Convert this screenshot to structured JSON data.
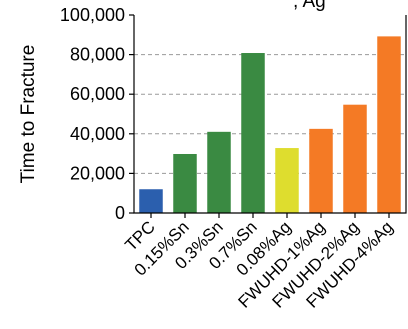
{
  "chart_data": {
    "type": "bar",
    "title_fragment": ", Ag",
    "xlabel": "",
    "ylabel": "Time to Fracture",
    "ylim": [
      0,
      100000
    ],
    "yticks": [
      0,
      20000,
      40000,
      60000,
      80000,
      100000
    ],
    "ytick_labels": [
      "0",
      "20,000",
      "40,000",
      "60,000",
      "80,000",
      "100,000"
    ],
    "grid": "horizontal dashed",
    "categories": [
      "TPC",
      "0.15%Sn",
      "0.3%Sn",
      "0.7%Sn",
      "0.08%Ag",
      "FWUHD-1%Ag",
      "FWUHD-2%Ag",
      "FWUHD-4%Ag"
    ],
    "values": [
      12000,
      29800,
      41000,
      80800,
      32800,
      42500,
      54700,
      89200
    ],
    "colors": [
      "#2b5fae",
      "#3a8a42",
      "#3a8a42",
      "#3a8a42",
      "#dedd2e",
      "#f47a25",
      "#f47a25",
      "#f47a25"
    ]
  }
}
